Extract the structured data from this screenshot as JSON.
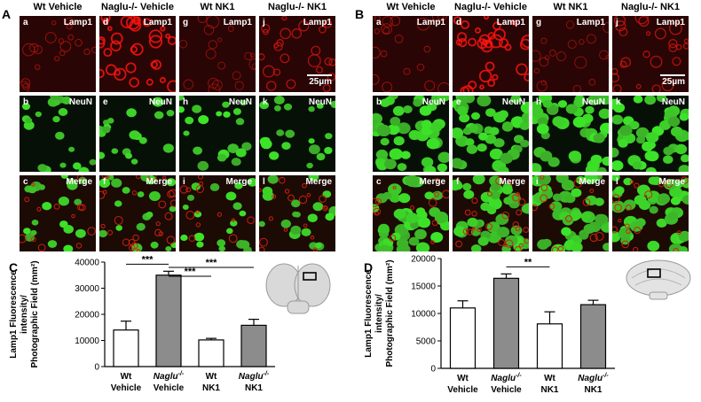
{
  "panels": {
    "A": {
      "letter": "A",
      "columns": [
        "Wt Vehicle",
        "Naglu-/- Vehicle",
        "Wt NK1",
        "Naglu-/- NK1"
      ],
      "rows": [
        {
          "stain": "Lamp1",
          "subs": [
            "a",
            "d",
            "g",
            "j"
          ],
          "kind": "lamp"
        },
        {
          "stain": "NeuN",
          "subs": [
            "b",
            "e",
            "h",
            "k"
          ],
          "kind": "neun"
        },
        {
          "stain": "Merge",
          "subs": [
            "c",
            "f",
            "i",
            "l"
          ],
          "kind": "merge"
        }
      ],
      "scale_label": "25µm"
    },
    "B": {
      "letter": "B",
      "columns": [
        "Wt Vehicle",
        "Naglu-/- Vehicle",
        "Wt NK1",
        "Naglu-/- NK1"
      ],
      "rows": [
        {
          "stain": "Lamp1",
          "subs": [
            "a",
            "d",
            "g",
            "j"
          ],
          "kind": "lamp"
        },
        {
          "stain": "NeuN",
          "subs": [
            "b",
            "e",
            "h",
            "k"
          ],
          "kind": "neun"
        },
        {
          "stain": "Merge",
          "subs": [
            "c",
            "f",
            "i",
            "l"
          ],
          "kind": "merge"
        }
      ],
      "scale_label": "25µm"
    },
    "C": {
      "letter": "C"
    },
    "D": {
      "letter": "D"
    }
  },
  "chart_data": [
    {
      "type": "bar",
      "panel": "C",
      "categories": [
        "Wt Vehicle",
        "Naglu-/- Vehicle",
        "Wt NK1",
        "Naglu-/- NK1"
      ],
      "values": [
        14000,
        35000,
        10200,
        15800
      ],
      "errors": [
        3400,
        1500,
        600,
        2300
      ],
      "bar_fill": [
        "#ffffff",
        "#8c8c8c",
        "#ffffff",
        "#8c8c8c"
      ],
      "ylabel": "Lamp1 Fluorescence intensity/ Photographic Field (mm²)",
      "ylim": [
        0,
        40000
      ],
      "yticks": [
        0,
        10000,
        20000,
        30000,
        40000
      ],
      "significance": [
        {
          "from": 0,
          "to": 1,
          "label": "***"
        },
        {
          "from": 1,
          "to": 3,
          "label": "***"
        },
        {
          "from": 1,
          "to": 2,
          "label": "***"
        }
      ]
    },
    {
      "type": "bar",
      "panel": "D",
      "categories": [
        "Wt Vehicle",
        "Naglu-/- Vehicle",
        "Wt NK1",
        "Naglu-/- NK1"
      ],
      "values": [
        11000,
        16400,
        8100,
        11600
      ],
      "errors": [
        1300,
        800,
        2200,
        800
      ],
      "bar_fill": [
        "#ffffff",
        "#8c8c8c",
        "#ffffff",
        "#8c8c8c"
      ],
      "ylabel": "Lamp1 Fluorescence intensity/ Photographic Field (mm²)",
      "ylim": [
        0,
        20000
      ],
      "yticks": [
        0,
        5000,
        10000,
        15000,
        20000
      ],
      "significance": [
        {
          "from": 1,
          "to": 2,
          "label": "**"
        }
      ]
    }
  ]
}
